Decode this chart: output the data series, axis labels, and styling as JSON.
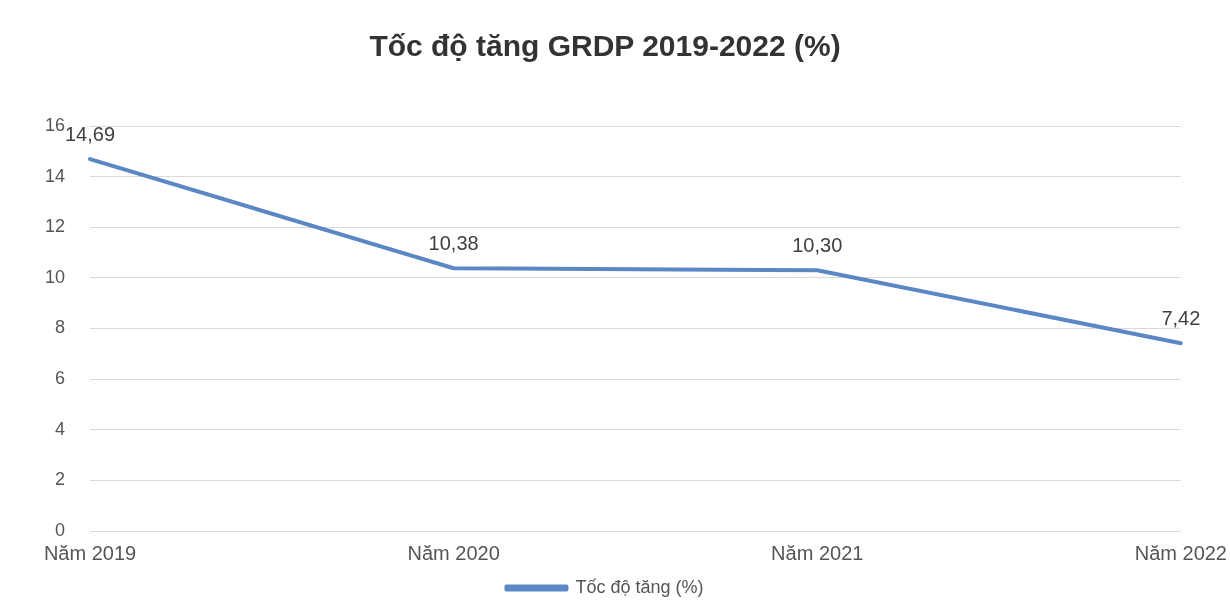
{
  "chart_data": {
    "type": "line",
    "title": "Tốc độ tăng GRDP 2019-2022 (%)",
    "categories": [
      "Năm 2019",
      "Năm 2020",
      "Năm 2021",
      "Năm 2022"
    ],
    "series": [
      {
        "name": "Tốc độ tăng (%)",
        "color": "#5b87c5",
        "values": [
          14.69,
          10.38,
          10.3,
          7.42
        ],
        "value_labels": [
          "14,69",
          "10,38",
          "10,30",
          "7,42"
        ]
      }
    ],
    "ylim": [
      0,
      16
    ],
    "yticks": [
      0,
      2,
      4,
      6,
      8,
      10,
      12,
      14,
      16
    ],
    "grid": "y",
    "legend": "bottom",
    "marker": "none",
    "line_style": "solid"
  }
}
